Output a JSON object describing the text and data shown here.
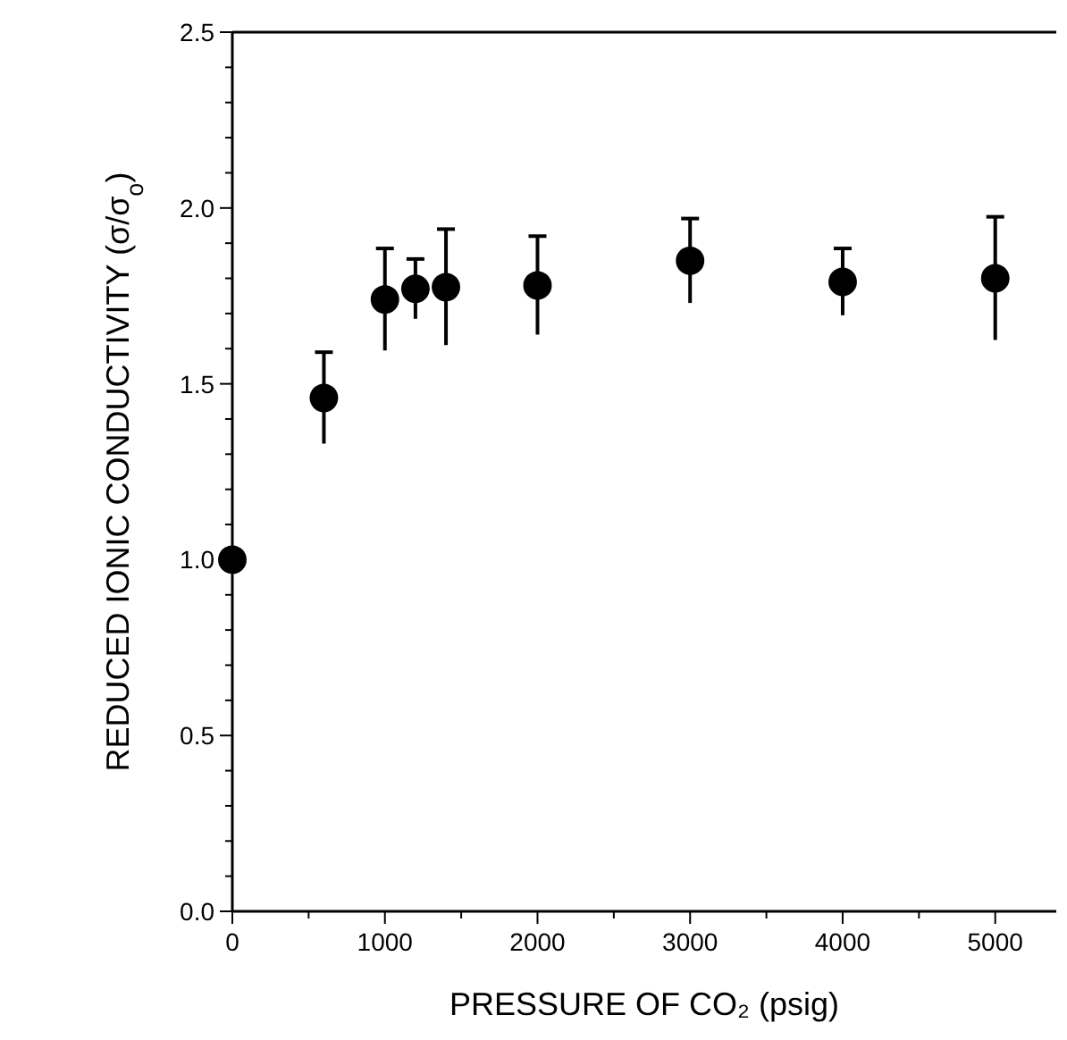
{
  "chart_data": {
    "type": "scatter",
    "xlabel": "PRESSURE OF CO₂ (psig)",
    "ylabel": "REDUCED IONIC CONDUCTIVITY (σ/σ$_{o}$)",
    "x": [
      0,
      600,
      1000,
      1200,
      1400,
      2000,
      3000,
      4000,
      5000
    ],
    "values": [
      1.0,
      1.46,
      1.74,
      1.77,
      1.775,
      1.78,
      1.85,
      1.79,
      1.8
    ],
    "errors": [
      null,
      0.13,
      0.145,
      0.085,
      0.165,
      0.14,
      0.12,
      0.095,
      0.175
    ],
    "color": "#000000",
    "marker": "circle",
    "grid": false,
    "xlim": [
      0,
      5400
    ],
    "ylim": [
      0,
      2.5
    ],
    "xticks": [
      0,
      {
        "value": 500,
        "label": null
      },
      1000,
      {
        "value": 1500,
        "label": null
      },
      2000,
      {
        "value": 2500,
        "label": null
      },
      3000,
      {
        "value": 3500,
        "label": null
      },
      4000,
      {
        "value": 4500,
        "label": null
      },
      5000
    ],
    "yticks": [
      {
        "value": 0,
        "label": "0.0"
      },
      {
        "value": 0.1,
        "label": null
      },
      {
        "value": 0.2,
        "label": null
      },
      {
        "value": 0.3,
        "label": null
      },
      {
        "value": 0.4,
        "label": null
      },
      0.5,
      {
        "value": 0.6,
        "label": null
      },
      {
        "value": 0.7,
        "label": null
      },
      {
        "value": 0.8,
        "label": null
      },
      {
        "value": 0.9,
        "label": null
      },
      {
        "value": 1,
        "label": "1.0"
      },
      {
        "value": 1.1,
        "label": null
      },
      {
        "value": 1.2,
        "label": null
      },
      {
        "value": 1.3,
        "label": null
      },
      {
        "value": 1.4,
        "label": null
      },
      1.5,
      {
        "value": 1.6,
        "label": null
      },
      {
        "value": 1.7,
        "label": null
      },
      {
        "value": 1.8,
        "label": null
      },
      {
        "value": 1.9,
        "label": null
      },
      {
        "value": 2,
        "label": "2.0"
      },
      {
        "value": 2.1,
        "label": null
      },
      {
        "value": 2.2,
        "label": null
      },
      {
        "value": 2.3,
        "label": null
      },
      {
        "value": 2.4,
        "label": null
      },
      2.5
    ]
  }
}
